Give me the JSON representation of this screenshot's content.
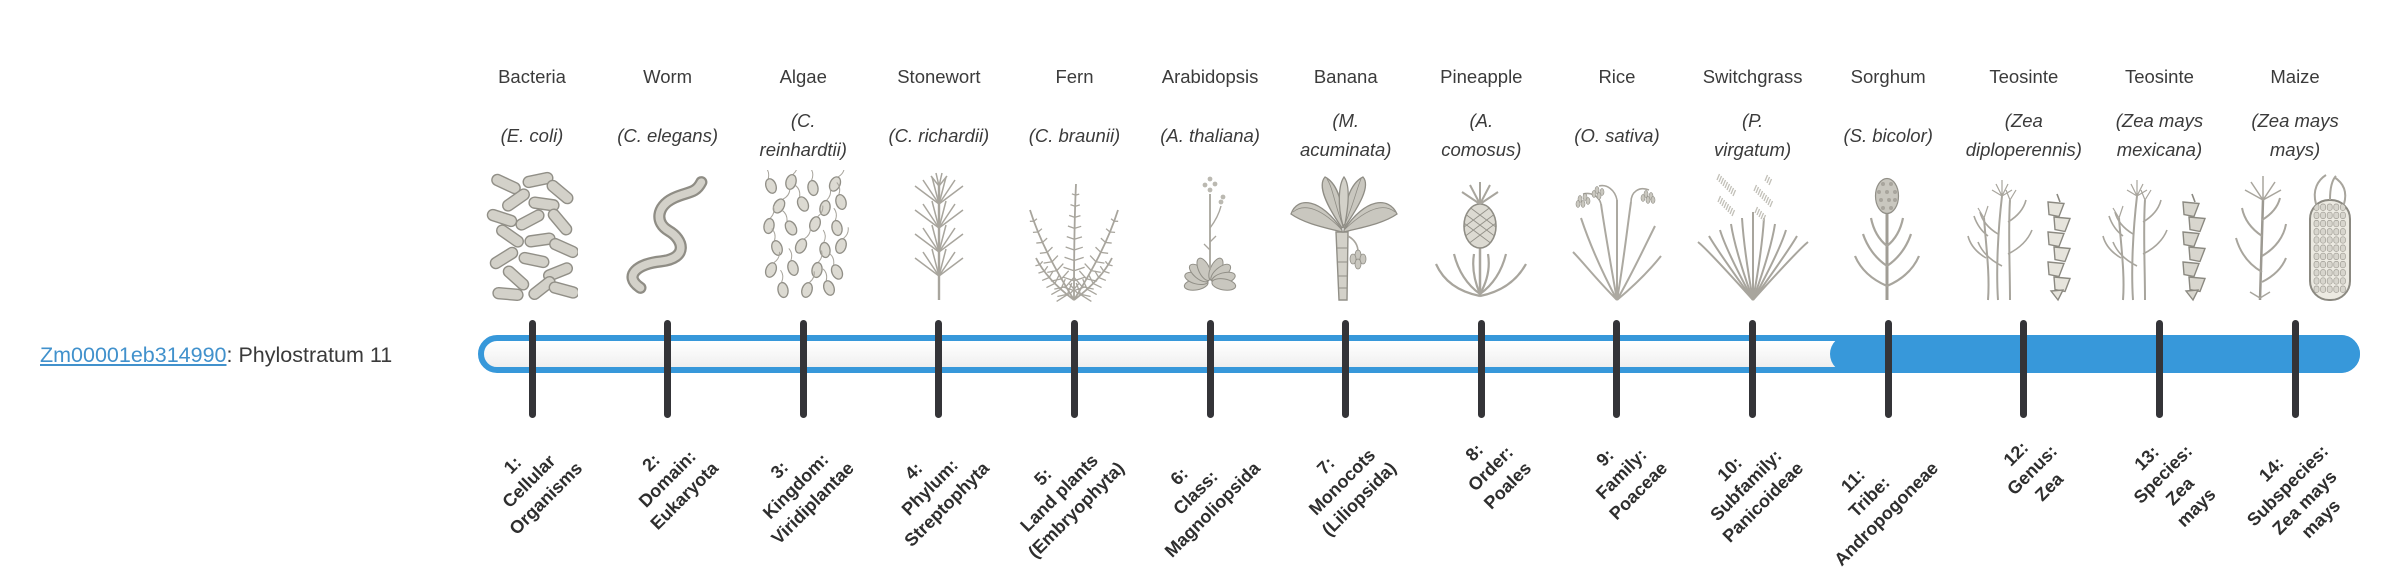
{
  "page": {
    "background": "#ffffff"
  },
  "gene": {
    "id": "Zm00001eb314990",
    "suffix": ": Phylostratum 11",
    "link_color": "#4191cc"
  },
  "bar": {
    "outline_color": "#3798da",
    "fill_color": "#3798da",
    "tick_color": "#343438",
    "filled_from_stratum": 11,
    "total_strata": 14
  },
  "chart_data": {
    "type": "table",
    "title": "Gene phylostratum assignment",
    "gene_label": "Zm00001eb314990: Phylostratum 11",
    "strata_axis": [
      "1: Cellular Organisms",
      "2: Domain: Eukaryota",
      "3: Kingdom: Viridiplantae",
      "4: Phylum: Streptophyta",
      "5: Land plants (Embryophyta)",
      "6: Class: Magnoliopsida",
      "7: Monocots (Liliopsida)",
      "8: Order: Poales",
      "9: Family: Poaceae",
      "10: Subfamily: Panicoideae",
      "11: Tribe: Andropogoneae",
      "12: Genus: Zea",
      "13: Species: Zea mays",
      "14: Subspecies: Zea mays mays"
    ],
    "organisms_axis": [
      "Bacteria (E. coli)",
      "Worm (C. elegans)",
      "Algae (C. reinhardtii)",
      "Stonewort (C. richardii)",
      "Fern (C. braunii)",
      "Arabidopsis (A. thaliana)",
      "Banana (M. acuminata)",
      "Pineapple (A. comosus)",
      "Rice (O. sativa)",
      "Switchgrass (P. virgatum)",
      "Sorghum (S. bicolor)",
      "Teosinte (Zea diploperennis)",
      "Teosinte (Zea mays mexicana)",
      "Maize (Zea mays mays)"
    ],
    "bar_filled_range": [
      11,
      14
    ]
  },
  "columns": [
    {
      "name": "Bacteria",
      "sci": "(E. coli)",
      "icon": "bacteria",
      "stratum": "1:\nCellular\nOrganisms"
    },
    {
      "name": "Worm",
      "sci": "(C. elegans)",
      "icon": "worm",
      "stratum": "2:\nDomain:\nEukaryota"
    },
    {
      "name": "Algae",
      "sci": "(C.\nreinhardtii)",
      "icon": "algae",
      "stratum": "3:\nKingdom:\nViridiplantae"
    },
    {
      "name": "Stonewort",
      "sci": "(C. richardii)",
      "icon": "stonewort",
      "stratum": "4:\nPhylum:\nStreptophyta"
    },
    {
      "name": "Fern",
      "sci": "(C. braunii)",
      "icon": "fern",
      "stratum": "5:\nLand plants\n(Embryophyta)"
    },
    {
      "name": "Arabidopsis",
      "sci": "(A. thaliana)",
      "icon": "arabidopsis",
      "stratum": "6:\nClass:\nMagnoliopsida"
    },
    {
      "name": "Banana",
      "sci": "(M.\nacuminata)",
      "icon": "banana",
      "stratum": "7:\nMonocots\n(Liliopsida)"
    },
    {
      "name": "Pineapple",
      "sci": "(A.\ncomosus)",
      "icon": "pineapple",
      "stratum": "8:\nOrder:\nPoales"
    },
    {
      "name": "Rice",
      "sci": "(O. sativa)",
      "icon": "rice",
      "stratum": "9:\nFamily:\nPoaceae"
    },
    {
      "name": "Switchgrass",
      "sci": "(P.\nvirgatum)",
      "icon": "switchgrass",
      "stratum": "10:\nSubfamily:\nPanicoideae"
    },
    {
      "name": "Sorghum",
      "sci": "(S. bicolor)",
      "icon": "sorghum",
      "stratum": "11:\nTribe:\nAndropogoneae"
    },
    {
      "name": "Teosinte",
      "sci": "(Zea\ndiploperennis)",
      "icon": "teosinte-diploperennis",
      "stratum": "12:\nGenus:\nZea"
    },
    {
      "name": "Teosinte",
      "sci": "(Zea mays\nmexicana)",
      "icon": "teosinte-mexicana",
      "stratum": "13:\nSpecies:\nZea\nmays"
    },
    {
      "name": "Maize",
      "sci": "(Zea mays\nmays)",
      "icon": "maize",
      "stratum": "14:\nSubspecies:\nZea mays\nmays"
    }
  ]
}
